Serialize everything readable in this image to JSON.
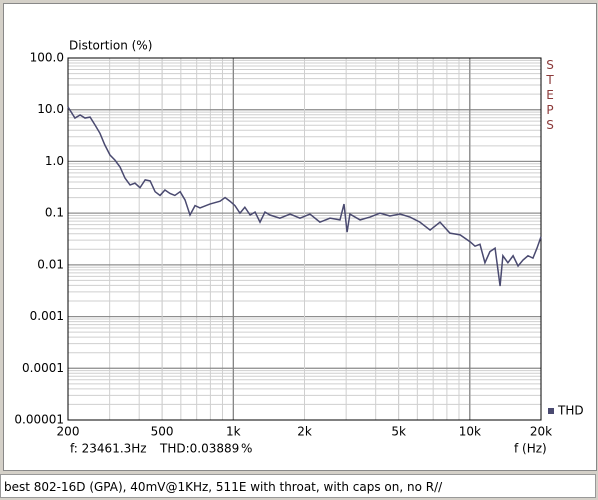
{
  "chart_data": {
    "type": "line",
    "y_label": "Distortion (%)",
    "x_label": "f (Hz)",
    "app_label": "STEPS",
    "xscale": "log",
    "yscale": "log",
    "grid": true,
    "minor_grid": true,
    "legend": "bottom-right",
    "xlim": [
      200,
      20000
    ],
    "xticks": [
      200,
      500,
      {
        "value": 1000,
        "label": "1k"
      },
      {
        "value": 2000,
        "label": "2k"
      },
      {
        "value": 5000,
        "label": "5k"
      },
      {
        "value": 10000,
        "label": "10k"
      },
      {
        "value": 20000,
        "label": "20k"
      }
    ],
    "ylim": [
      1e-05,
      100
    ],
    "yticks": [
      {
        "value": 1e-05,
        "label": "0.00001"
      },
      0.0001,
      0.001,
      0.01,
      0.1,
      {
        "value": 1,
        "label": "1.0"
      },
      {
        "value": 10,
        "label": "10.0"
      },
      {
        "value": 100,
        "label": "100.0"
      }
    ],
    "x": [
      200,
      214,
      225,
      236,
      248,
      260,
      273,
      286,
      301,
      316,
      332,
      348,
      366,
      384,
      403,
      424,
      445,
      467,
      490,
      514,
      540,
      566,
      596,
      625,
      656,
      689,
      723,
      796,
      879,
      923,
      968,
      1016,
      1067,
      1119,
      1178,
      1236,
      1297,
      1361,
      1429,
      1574,
      1738,
      1914,
      2109,
      2323,
      2564,
      2825,
      2938,
      3027,
      3112,
      3436,
      3784,
      4169,
      4592,
      5070,
      5585,
      6152,
      6792,
      7482,
      8241,
      9099,
      10023,
      10520,
      11041,
      11588,
      12162,
      12790,
      13428,
      13800,
      14490,
      15240,
      15996,
      16788,
      17620,
      18493,
      19230,
      20000
    ],
    "series": [
      {
        "name": "THD",
        "color": "#4a4a70",
        "values": [
          11.3,
          6.9,
          7.9,
          6.9,
          7.2,
          5.1,
          3.5,
          2.1,
          1.33,
          1.06,
          0.78,
          0.48,
          0.35,
          0.38,
          0.31,
          0.44,
          0.42,
          0.26,
          0.22,
          0.28,
          0.24,
          0.22,
          0.26,
          0.18,
          0.092,
          0.14,
          0.126,
          0.15,
          0.17,
          0.2,
          0.17,
          0.14,
          0.1,
          0.13,
          0.092,
          0.105,
          0.067,
          0.105,
          0.092,
          0.08,
          0.096,
          0.08,
          0.096,
          0.067,
          0.08,
          0.074,
          0.15,
          0.043,
          0.096,
          0.074,
          0.084,
          0.1,
          0.088,
          0.096,
          0.084,
          0.067,
          0.047,
          0.067,
          0.041,
          0.038,
          0.028,
          0.023,
          0.025,
          0.011,
          0.018,
          0.021,
          0.0039,
          0.015,
          0.011,
          0.015,
          0.0095,
          0.0124,
          0.015,
          0.0135,
          0.021,
          0.035
        ]
      }
    ]
  },
  "status": {
    "frequency": "f: 23461.3Hz",
    "thd": "THD:0.03889",
    "unit": "%"
  },
  "caption": "best 802-16D (GPA), 40mV@1KHz, 511E with throat, with caps on, no R//"
}
